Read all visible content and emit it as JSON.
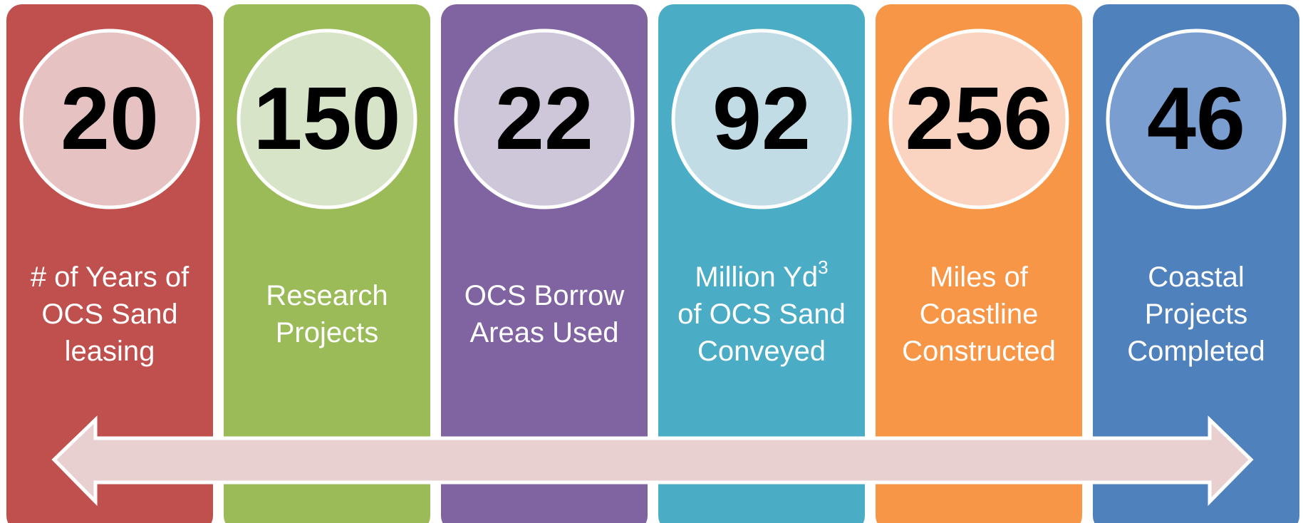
{
  "cards": [
    {
      "number": 20,
      "lines": [
        "# of Years of",
        "OCS Sand",
        "leasing"
      ],
      "color": "#c0504d",
      "circle": "#e6c2c3"
    },
    {
      "number": 150,
      "lines": [
        "Research",
        "Projects"
      ],
      "color": "#9bbb59",
      "circle": "#d8e4c8"
    },
    {
      "number": 22,
      "lines": [
        "OCS Borrow",
        "Areas Used"
      ],
      "color": "#8064a2",
      "circle": "#cec7d9"
    },
    {
      "number": 92,
      "lines": [
        "Million Yd",
        "of OCS Sand",
        "Conveyed"
      ],
      "sup": "3",
      "color": "#4bacc6",
      "circle": "#c2dce6"
    },
    {
      "number": 256,
      "lines": [
        "Miles of",
        "Coastline",
        "Constructed"
      ],
      "color": "#f79646",
      "circle": "#fad4c0"
    },
    {
      "number": 46,
      "lines": [
        "Coastal",
        "Projects",
        "Completed"
      ],
      "color": "#4f81bd",
      "circle": "#7a9ecf"
    }
  ]
}
